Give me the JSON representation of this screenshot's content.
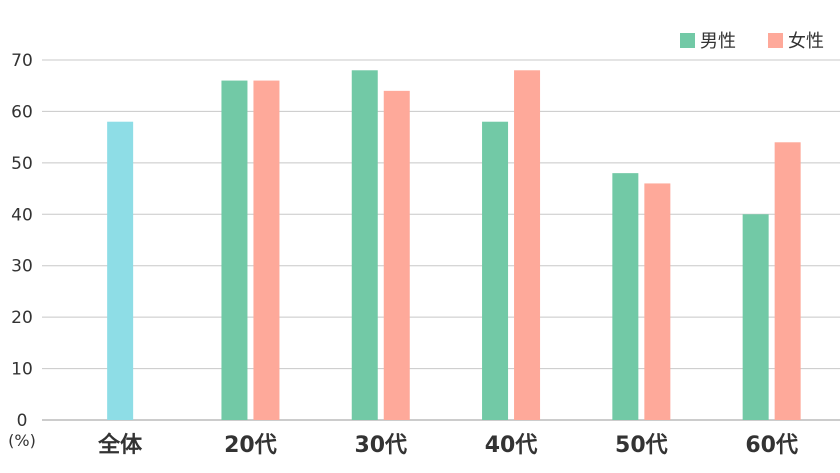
{
  "chart_data": {
    "type": "bar",
    "categories": [
      "全体",
      "20代",
      "30代",
      "40代",
      "50代",
      "60代"
    ],
    "series": [
      {
        "name": "",
        "values": [
          58,
          null,
          null,
          null,
          null,
          null
        ],
        "color": "#8edde6"
      },
      {
        "name": "男性",
        "values": [
          null,
          66,
          68,
          58,
          48,
          40
        ],
        "color": "#72c9a6"
      },
      {
        "name": "女性",
        "values": [
          null,
          66,
          64,
          68,
          46,
          54
        ],
        "color": "#fea99a"
      }
    ],
    "ylabel": "(%)",
    "ylim": [
      0,
      70
    ],
    "yticks": [
      0,
      10,
      20,
      30,
      40,
      50,
      60,
      70
    ],
    "grid": true,
    "legend_position": "top-right"
  }
}
